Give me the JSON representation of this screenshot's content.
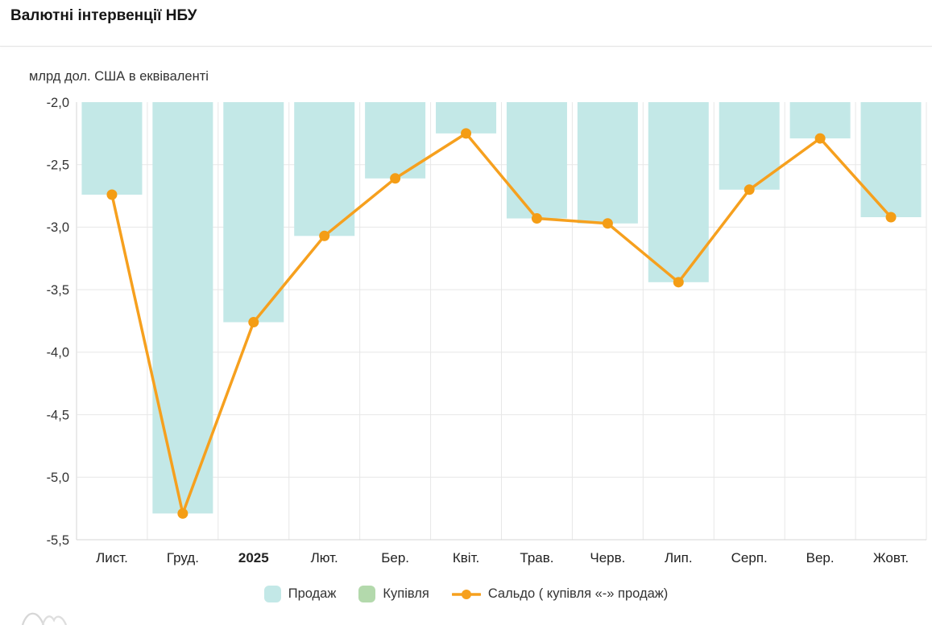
{
  "header": {
    "title": "Валютні інтервенції НБУ"
  },
  "chart": {
    "unit_label": "млрд дол. США в еквіваленті"
  },
  "chart_data": {
    "type": "combo",
    "title": "Валютні інтервенції НБУ",
    "ylabel": "млрд дол. США в еквіваленті",
    "categories": [
      "Лист.",
      "Груд.",
      "2025",
      "Лют.",
      "Бер.",
      "Квіт.",
      "Трав.",
      "Черв.",
      "Лип.",
      "Серп.",
      "Вер.",
      "Жовт."
    ],
    "bold_categories": [
      "2025"
    ],
    "series": [
      {
        "name": "Продаж",
        "type": "bar",
        "color": "#c3e8e7",
        "values": [
          -2.74,
          -5.29,
          -3.76,
          -3.07,
          -2.61,
          -2.25,
          -2.93,
          -2.97,
          -3.44,
          -2.7,
          -2.29,
          -2.92
        ]
      },
      {
        "name": "Купівля",
        "type": "bar",
        "color": "#b3d9ac",
        "values": [
          0,
          0,
          0,
          0,
          0,
          0,
          0,
          0,
          0,
          0,
          0,
          0
        ]
      },
      {
        "name": "Сальдо ( купівля «-» продаж)",
        "type": "line",
        "color": "#f6a01e",
        "values": [
          -2.74,
          -5.29,
          -3.76,
          -3.07,
          -2.61,
          -2.25,
          -2.93,
          -2.97,
          -3.44,
          -2.7,
          -2.29,
          -2.92
        ]
      }
    ],
    "ylim": [
      -5.5,
      -2.0
    ],
    "y_ticks": [
      {
        "value": -2.0,
        "label": "-2,0"
      },
      {
        "value": -2.5,
        "label": "-2,5"
      },
      {
        "value": -3.0,
        "label": "-3,0"
      },
      {
        "value": -3.5,
        "label": "-3,5"
      },
      {
        "value": -4.0,
        "label": "-4,0"
      },
      {
        "value": -4.5,
        "label": "-4,5"
      },
      {
        "value": -5.0,
        "label": "-5,0"
      },
      {
        "value": -5.5,
        "label": "-5,5"
      }
    ],
    "grid": true,
    "legend_position": "bottom"
  },
  "legend": {
    "items": [
      {
        "label": "Продаж",
        "color": "#c3e8e7",
        "marker": "box"
      },
      {
        "label": "Купівля",
        "color": "#b3d9ac",
        "marker": "box"
      },
      {
        "label": "Сальдо ( купівля «-» продаж)",
        "color": "#f6a01e",
        "marker": "line-dot"
      }
    ]
  },
  "colors": {
    "grid": "#e7e7e7",
    "axis": "#d6d6d6",
    "tick_text": "#333333",
    "line": "#f6a01e",
    "marker": "#f49d15"
  }
}
